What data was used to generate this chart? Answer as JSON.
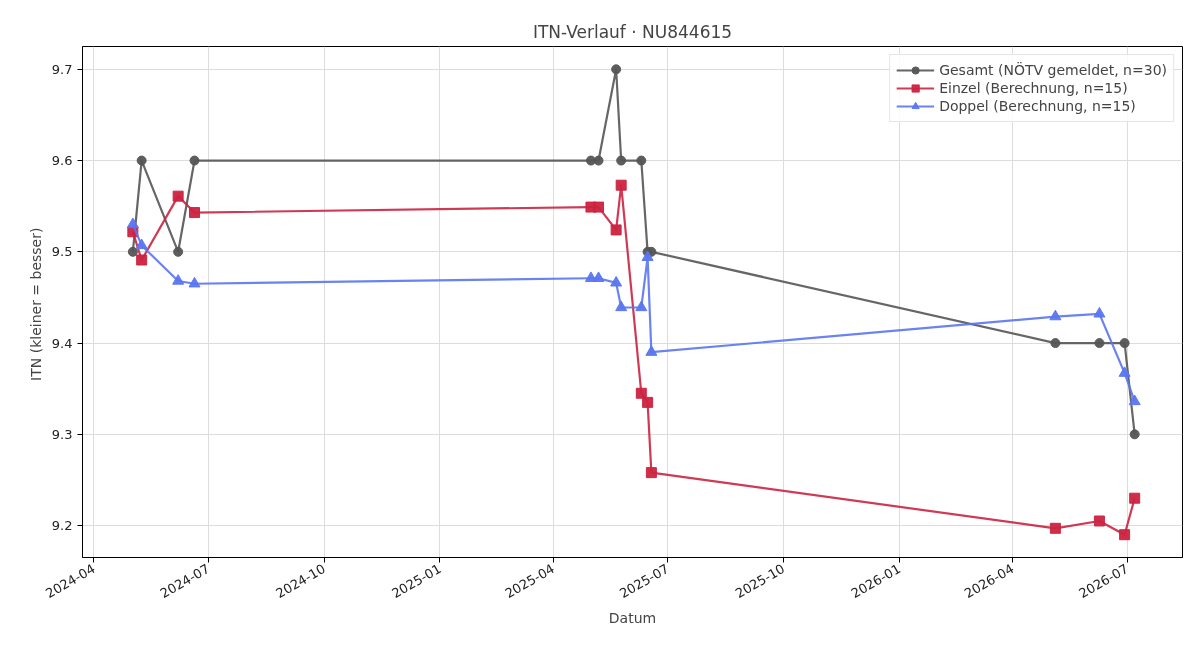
{
  "chart_data": {
    "type": "line",
    "title": "ITN-Verlauf · NU844615",
    "xlabel": "Datum",
    "ylabel": "ITN  (kleiner = besser)",
    "xlim": [
      "2024-03-23",
      "2026-08-14"
    ],
    "xticks": [
      "2024-04",
      "2024-07",
      "2024-10",
      "2025-01",
      "2025-04",
      "2025-07",
      "2025-10",
      "2026-01",
      "2026-04",
      "2026-07"
    ],
    "ylim": [
      9.165,
      9.725
    ],
    "yticks": [
      9.2,
      9.3,
      9.4,
      9.5,
      9.6,
      9.7
    ],
    "grid": true,
    "legend": "top right",
    "line_style": "solid",
    "series": [
      {
        "name": "Gesamt (NÖTV gemeldet, n=30)",
        "color": "#555555",
        "marker": "circle",
        "x": [
          "2024-05-02",
          "2024-05-09",
          "2024-06-07",
          "2024-06-20",
          "2025-05-01",
          "2025-05-07",
          "2025-05-21",
          "2025-05-25",
          "2025-06-10",
          "2025-06-15",
          "2025-06-18",
          "2026-05-05",
          "2026-06-09",
          "2026-06-29",
          "2026-07-07"
        ],
        "values": [
          9.5,
          9.6,
          9.5,
          9.6,
          9.6,
          9.6,
          9.7,
          9.6,
          9.6,
          9.5,
          9.5,
          9.4,
          9.4,
          9.4,
          9.3
        ]
      },
      {
        "name": "Einzel (Berechnung, n=15)",
        "color": "#cb2340",
        "marker": "square",
        "x": [
          "2024-05-02",
          "2024-05-09",
          "2024-06-07",
          "2024-06-20",
          "2025-05-01",
          "2025-05-07",
          "2025-05-21",
          "2025-05-25",
          "2025-06-10",
          "2025-06-15",
          "2025-06-18",
          "2026-05-05",
          "2026-06-09",
          "2026-06-29",
          "2026-07-07"
        ],
        "values": [
          9.522,
          9.491,
          9.561,
          9.543,
          9.549,
          9.549,
          9.524,
          9.573,
          9.345,
          9.335,
          9.258,
          9.197,
          9.205,
          9.19,
          9.23
        ]
      },
      {
        "name": "Doppel (Berechnung, n=15)",
        "color": "#5a76f0",
        "marker": "triangle",
        "x": [
          "2024-05-02",
          "2024-05-09",
          "2024-06-07",
          "2024-06-20",
          "2025-05-01",
          "2025-05-07",
          "2025-05-21",
          "2025-05-25",
          "2025-06-10",
          "2025-06-15",
          "2025-06-18",
          "2026-05-05",
          "2026-06-09",
          "2026-06-29",
          "2026-07-07"
        ],
        "values": [
          9.53,
          9.507,
          9.468,
          9.465,
          9.471,
          9.471,
          9.466,
          9.439,
          9.439,
          9.494,
          9.39,
          9.429,
          9.432,
          9.367,
          9.336
        ]
      }
    ]
  }
}
